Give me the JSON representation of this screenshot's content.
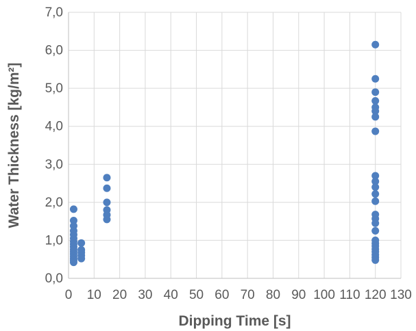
{
  "chart_data": {
    "type": "scatter",
    "title": "",
    "xlabel": "Dipping Time [s]",
    "ylabel": "Water Thickness [kg/m²]",
    "xlim": [
      0,
      130
    ],
    "ylim": [
      0,
      7
    ],
    "x_ticks": [
      "0",
      "10",
      "20",
      "30",
      "40",
      "50",
      "60",
      "70",
      "80",
      "90",
      "100",
      "110",
      "120",
      "130"
    ],
    "y_ticks": [
      "0,0",
      "1,0",
      "2,0",
      "3,0",
      "4,0",
      "5,0",
      "6,0",
      "7,0"
    ],
    "grid": true,
    "legend": "none",
    "marker_color": "#4f7fbf",
    "series": [
      {
        "points": [
          [
            2,
            1.82
          ],
          [
            2,
            1.52
          ],
          [
            2,
            1.38
          ],
          [
            2,
            1.25
          ],
          [
            2,
            1.15
          ],
          [
            2,
            1.05
          ],
          [
            2,
            0.97
          ],
          [
            2,
            0.9
          ],
          [
            2,
            0.83
          ],
          [
            2,
            0.76
          ],
          [
            2,
            0.7
          ],
          [
            2,
            0.64
          ],
          [
            2,
            0.58
          ],
          [
            2,
            0.52
          ],
          [
            2,
            0.47
          ],
          [
            2,
            0.42
          ],
          [
            5,
            0.93
          ],
          [
            5,
            0.75
          ],
          [
            5,
            0.68
          ],
          [
            5,
            0.6
          ],
          [
            5,
            0.52
          ],
          [
            15,
            2.65
          ],
          [
            15,
            2.37
          ],
          [
            15,
            2.0
          ],
          [
            15,
            1.8
          ],
          [
            15,
            1.67
          ],
          [
            15,
            1.55
          ],
          [
            120,
            6.15
          ],
          [
            120,
            5.25
          ],
          [
            120,
            4.9
          ],
          [
            120,
            4.67
          ],
          [
            120,
            4.5
          ],
          [
            120,
            4.4
          ],
          [
            120,
            4.25
          ],
          [
            120,
            3.87
          ],
          [
            120,
            2.7
          ],
          [
            120,
            2.55
          ],
          [
            120,
            2.4
          ],
          [
            120,
            2.22
          ],
          [
            120,
            2.03
          ],
          [
            120,
            1.68
          ],
          [
            120,
            1.57
          ],
          [
            120,
            1.45
          ],
          [
            120,
            1.25
          ],
          [
            120,
            1.0
          ],
          [
            120,
            0.92
          ],
          [
            120,
            0.85
          ],
          [
            120,
            0.77
          ],
          [
            120,
            0.7
          ],
          [
            120,
            0.62
          ],
          [
            120,
            0.55
          ],
          [
            120,
            0.48
          ]
        ]
      }
    ]
  }
}
